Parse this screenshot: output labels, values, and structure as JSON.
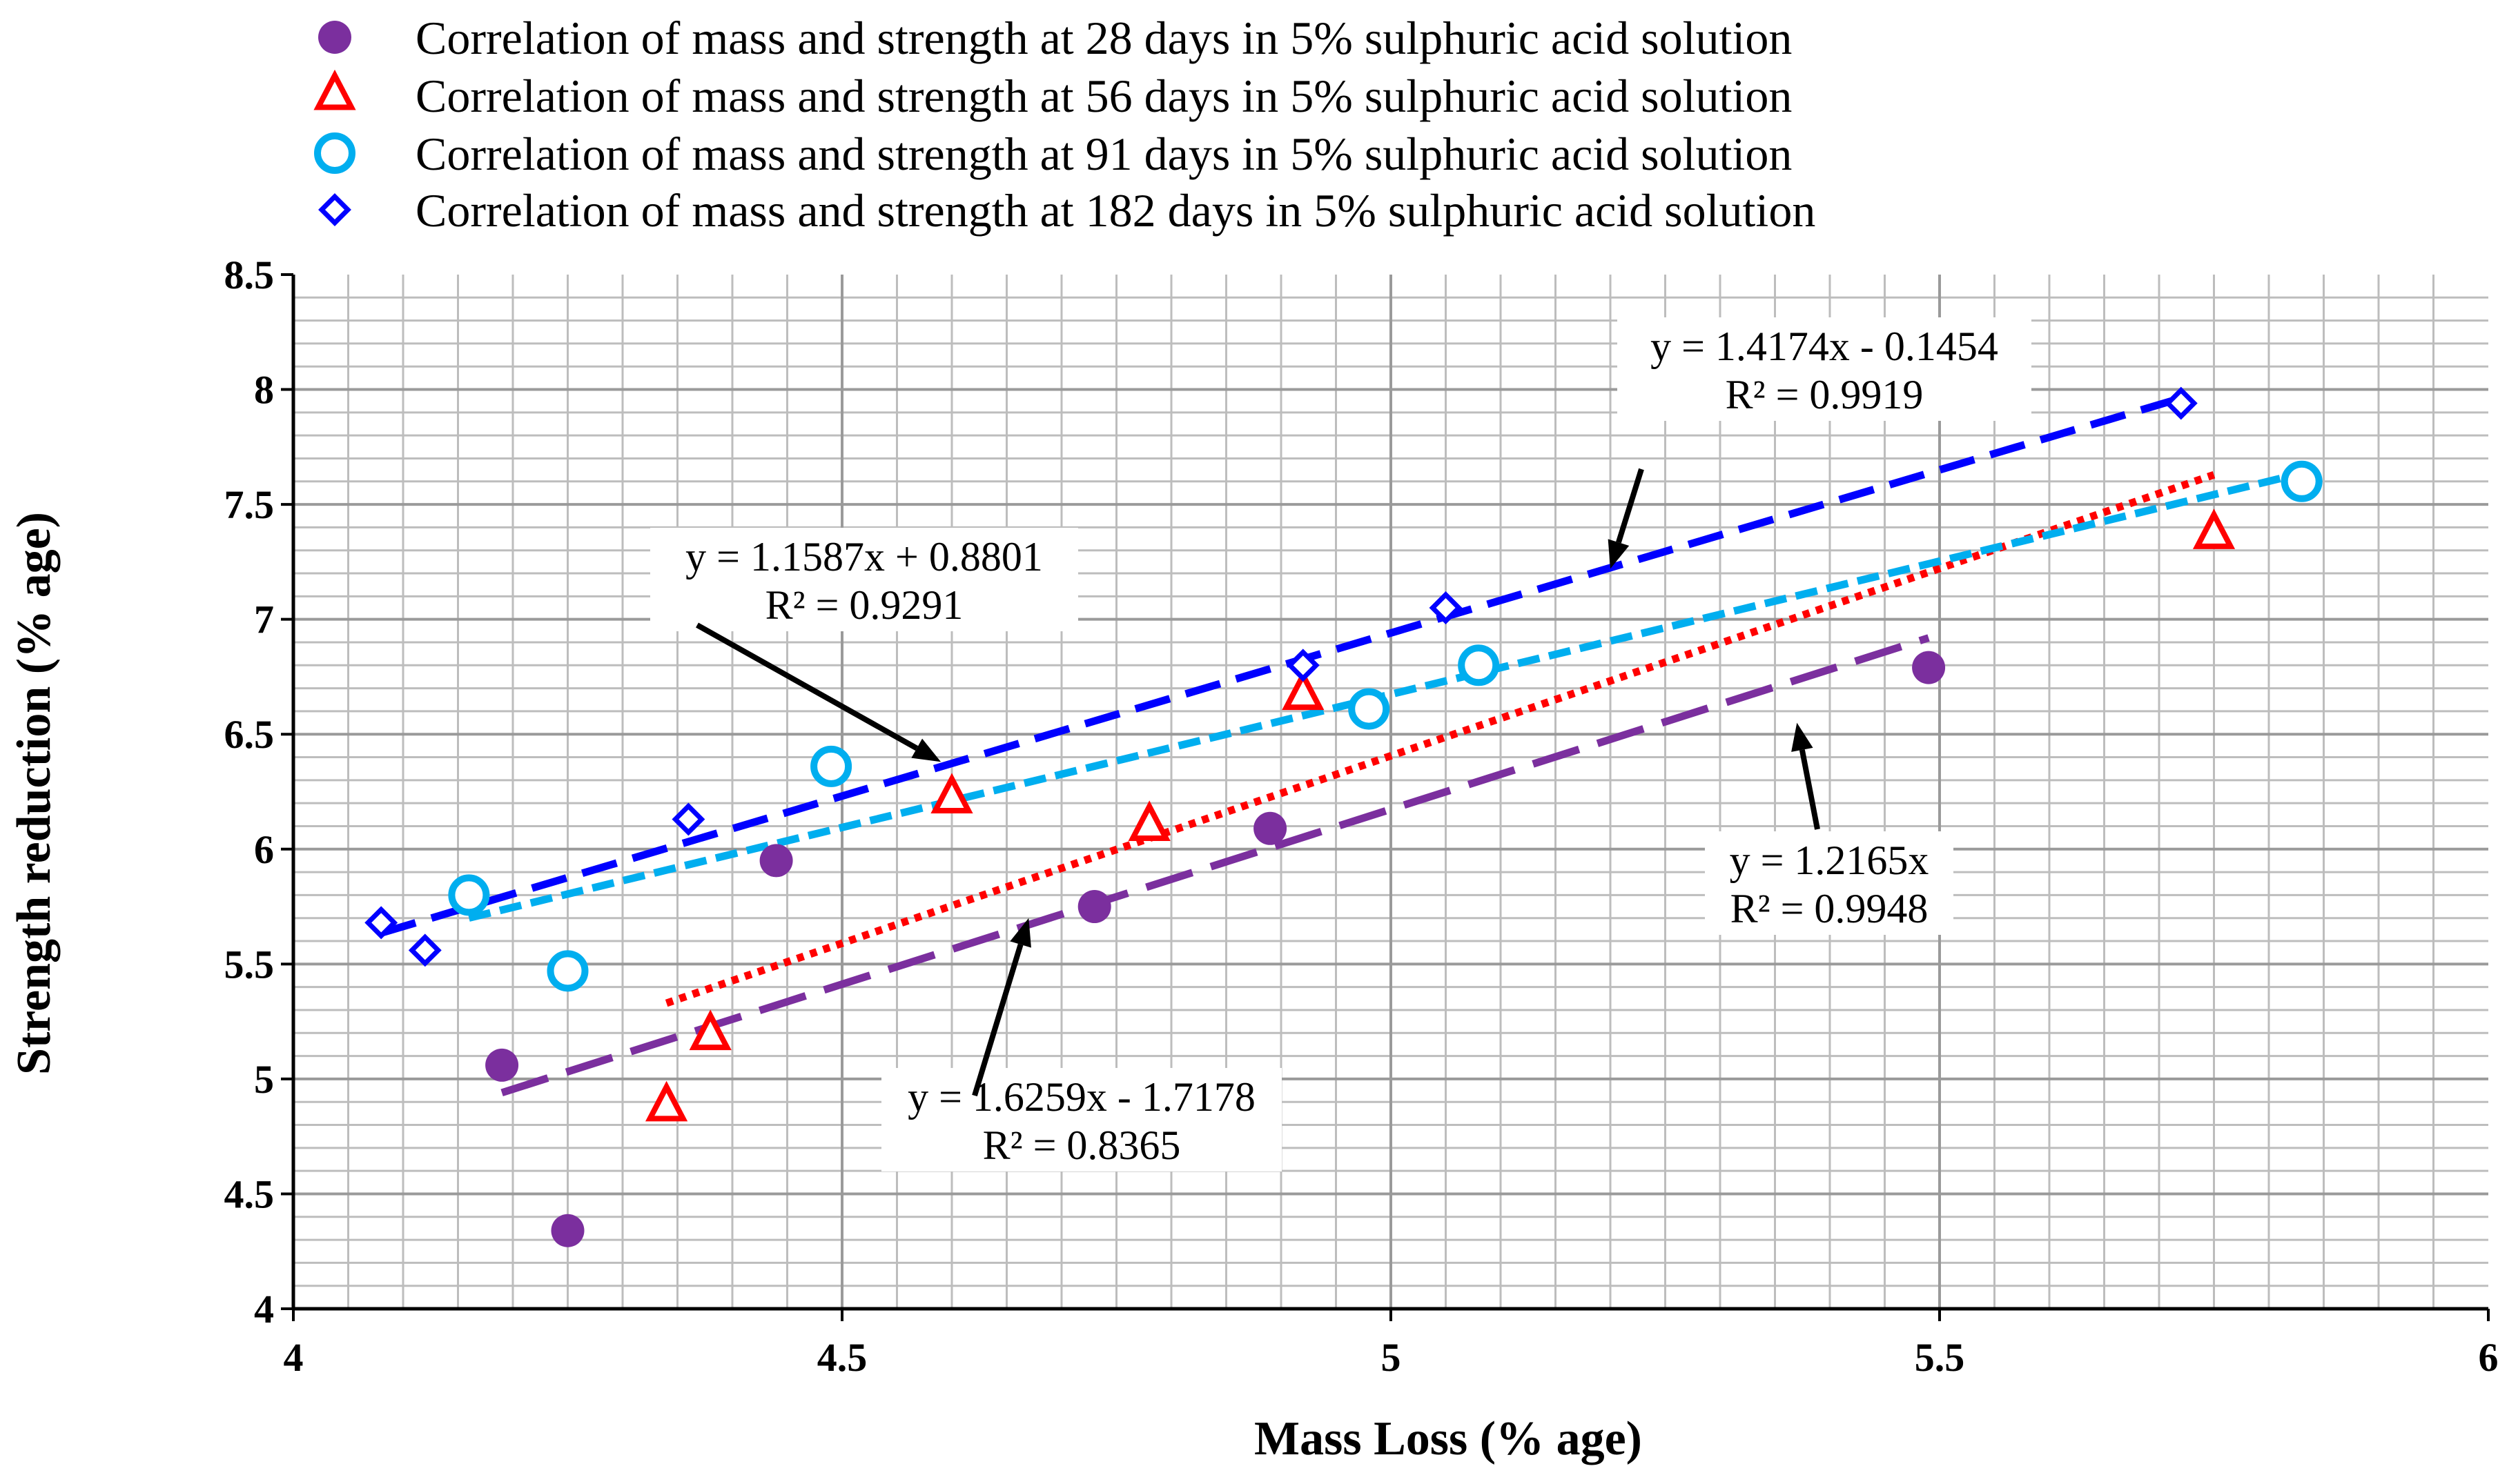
{
  "chart_data": {
    "type": "scatter",
    "title": "",
    "xlabel": "Mass Loss (% age)",
    "ylabel": "Strength reduction (% age)",
    "xlim": [
      4,
      6
    ],
    "ylim": [
      4,
      8.5
    ],
    "grid": true,
    "legend_position": "top",
    "x_ticks": [
      "4",
      "4.5",
      "5",
      "5.5",
      "6"
    ],
    "y_ticks": [
      "4",
      "4.5",
      "5",
      "5.5",
      "6",
      "6.5",
      "7",
      "7.5",
      "8",
      "8.5"
    ],
    "series": [
      {
        "name": "Correlation of mass and strength at 28 days in 5% sulphuric acid solution",
        "marker": "filled-circle",
        "color": "#7B2F9E",
        "points": [
          [
            4.19,
            5.06
          ],
          [
            4.25,
            4.34
          ],
          [
            4.44,
            5.95
          ],
          [
            4.73,
            5.75
          ],
          [
            4.89,
            6.09
          ],
          [
            5.49,
            6.79
          ]
        ],
        "trendline": {
          "style": "long-dash",
          "x_range": [
            4.19,
            5.49
          ]
        }
      },
      {
        "name": "Correlation of mass and strength at 56 days in 5% sulphuric acid solution",
        "marker": "open-triangle",
        "color": "#FF0000",
        "points": [
          [
            4.34,
            4.88
          ],
          [
            4.38,
            5.19
          ],
          [
            4.6,
            6.22
          ],
          [
            4.78,
            6.1
          ],
          [
            4.92,
            6.67
          ],
          [
            5.75,
            7.37
          ]
        ],
        "trendline": {
          "style": "dotted",
          "x_range": [
            4.34,
            5.75
          ]
        }
      },
      {
        "name": "Correlation of mass and strength at 91 days in 5% sulphuric acid solution",
        "marker": "open-circle",
        "color": "#00AEEF",
        "points": [
          [
            4.16,
            5.8
          ],
          [
            4.25,
            5.47
          ],
          [
            4.49,
            6.36
          ],
          [
            4.98,
            6.61
          ],
          [
            5.08,
            6.8
          ],
          [
            5.83,
            7.6
          ]
        ],
        "trendline": {
          "style": "short-dash",
          "x_range": [
            4.16,
            5.83
          ]
        }
      },
      {
        "name": "Correlation of mass and strength at 182 days in 5% sulphuric acid solution",
        "marker": "open-diamond",
        "color": "#0000FF",
        "points": [
          [
            4.08,
            5.68
          ],
          [
            4.12,
            5.56
          ],
          [
            4.36,
            6.13
          ],
          [
            4.92,
            6.8
          ],
          [
            5.05,
            7.05
          ],
          [
            5.72,
            7.94
          ]
        ],
        "trendline": {
          "style": "dash",
          "x_range": [
            4.08,
            5.72
          ]
        }
      }
    ],
    "annotations": [
      {
        "equation": "y = 1.4174x - 0.1454",
        "r2": "R² = 0.9919",
        "arrow_to": [
          5.2,
          7.22
        ]
      },
      {
        "equation": "y = 1.1587x + 0.8801",
        "r2": "R² = 0.9291",
        "arrow_to": [
          4.59,
          6.38
        ]
      },
      {
        "equation": "y = 1.2165x",
        "r2": "R² = 0.9948",
        "arrow_to": [
          5.37,
          6.55
        ]
      },
      {
        "equation": "y = 1.6259x - 1.7178",
        "r2": "R² = 0.8365",
        "arrow_to": [
          4.67,
          5.7
        ]
      }
    ]
  }
}
